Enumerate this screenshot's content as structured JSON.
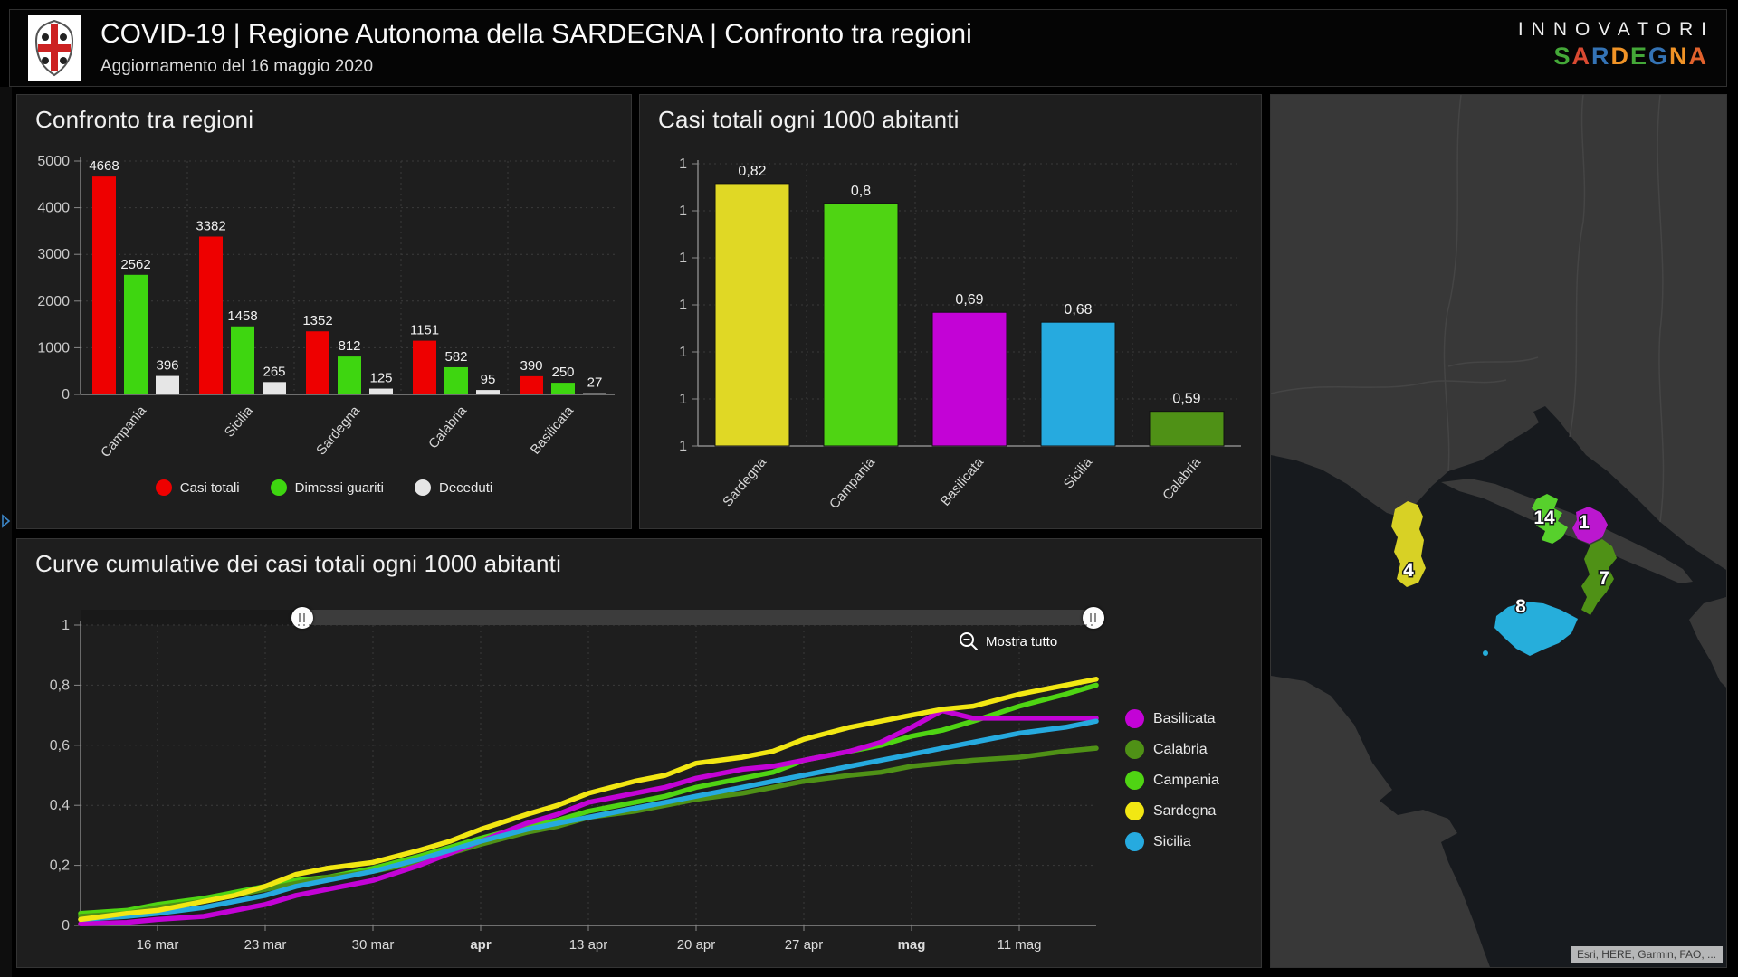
{
  "header": {
    "title": "COVID-19 | Regione Autonoma della SARDEGNA | Confronto tra regioni",
    "subtitle": "Aggiornamento del 16 maggio 2020",
    "logo_name": "stemma-sardegna-quattro-mori",
    "brand": {
      "line1": "INNOVATORI",
      "line2": "SARDEGNA",
      "letter_colors": [
        "#44a838",
        "#d94a32",
        "#3473b5",
        "#f09326",
        "#44a838",
        "#3473b5",
        "#f09326",
        "#e2622d"
      ]
    }
  },
  "left_strip": {
    "expand_icon": "chevron-right-icon",
    "color": "#3c87c9"
  },
  "chart_data": [
    {
      "id": "confronto",
      "type": "bar",
      "title": "Confronto tra regioni",
      "categories": [
        "Campania",
        "Sicilia",
        "Sardegna",
        "Calabria",
        "Basilicata"
      ],
      "series": [
        {
          "name": "Casi totali",
          "color": "#ee0000",
          "values": [
            4668,
            3382,
            1352,
            1151,
            390
          ]
        },
        {
          "name": "Dimessi guariti",
          "color": "#3ed610",
          "values": [
            2562,
            1458,
            812,
            582,
            250
          ]
        },
        {
          "name": "Deceduti",
          "color": "#e6e6e6",
          "values": [
            396,
            265,
            125,
            95,
            27
          ]
        }
      ],
      "ylim": [
        0,
        5000
      ],
      "yticks": [
        0,
        1000,
        2000,
        3000,
        4000,
        5000
      ],
      "grid": "dotted",
      "legend_position": "bottom"
    },
    {
      "id": "per1000",
      "type": "bar",
      "title": "Casi totali ogni 1000 abitanti",
      "categories": [
        "Sardegna",
        "Campania",
        "Basilicata",
        "Sicilia",
        "Calabria"
      ],
      "values": [
        0.82,
        0.8,
        0.69,
        0.68,
        0.59
      ],
      "value_labels": [
        "0,82",
        "0,8",
        "0,69",
        "0,68",
        "0,59"
      ],
      "colors": [
        "#e0d825",
        "#4fd413",
        "#c303d6",
        "#26aadf",
        "#4f9116"
      ],
      "ylim": [
        0.555,
        0.84
      ],
      "ytick_count": 7,
      "ytick_label": "1",
      "grid": "dotted"
    },
    {
      "id": "curve",
      "type": "line",
      "title": "Curve cumulative dei casi totali ogni 1000 abitanti",
      "ylim": [
        0,
        1
      ],
      "y_ticks": [
        {
          "v": 1,
          "label": "1"
        },
        {
          "v": 0.8,
          "label": "0,8"
        },
        {
          "v": 0.6,
          "label": "0,6"
        },
        {
          "v": 0.4,
          "label": "0,4"
        },
        {
          "v": 0.2,
          "label": "0,2"
        },
        {
          "v": 0,
          "label": "0"
        }
      ],
      "x_range_days": [
        0,
        66
      ],
      "x_ticks": [
        {
          "day": 5,
          "label": "16 mar",
          "bold": false
        },
        {
          "day": 12,
          "label": "23 mar",
          "bold": false
        },
        {
          "day": 19,
          "label": "30 mar",
          "bold": false
        },
        {
          "day": 26,
          "label": "apr",
          "bold": true
        },
        {
          "day": 33,
          "label": "13 apr",
          "bold": false
        },
        {
          "day": 40,
          "label": "20 apr",
          "bold": false
        },
        {
          "day": 47,
          "label": "27 apr",
          "bold": false
        },
        {
          "day": 54,
          "label": "mag",
          "bold": true
        },
        {
          "day": 61,
          "label": "11 mag",
          "bold": false
        }
      ],
      "zoom_out_label": "Mostra tutto",
      "slider": {
        "left_frac": 0.218,
        "right_frac": 0.997
      },
      "draw_order": [
        "Campania",
        "Calabria",
        "Basilicata",
        "Sicilia",
        "Sardegna"
      ],
      "series": [
        {
          "name": "Basilicata",
          "color": "#c303d6",
          "x": [
            0,
            3,
            5,
            8,
            10,
            12,
            14,
            16,
            19,
            22,
            24,
            26,
            29,
            31,
            33,
            36,
            38,
            40,
            43,
            45,
            47,
            50,
            52,
            54,
            56,
            58,
            61,
            64,
            66
          ],
          "y": [
            0.005,
            0.01,
            0.02,
            0.03,
            0.05,
            0.07,
            0.1,
            0.12,
            0.15,
            0.2,
            0.24,
            0.28,
            0.34,
            0.37,
            0.41,
            0.44,
            0.46,
            0.49,
            0.52,
            0.53,
            0.55,
            0.58,
            0.61,
            0.66,
            0.715,
            0.69,
            0.69,
            0.69,
            0.69
          ]
        },
        {
          "name": "Calabria",
          "color": "#4f9116",
          "x": [
            0,
            3,
            5,
            8,
            10,
            12,
            14,
            16,
            19,
            22,
            24,
            26,
            29,
            31,
            33,
            36,
            38,
            40,
            43,
            45,
            47,
            50,
            52,
            54,
            56,
            58,
            61,
            64,
            66
          ],
          "y": [
            0.03,
            0.04,
            0.06,
            0.08,
            0.1,
            0.12,
            0.14,
            0.16,
            0.18,
            0.21,
            0.24,
            0.27,
            0.31,
            0.33,
            0.36,
            0.38,
            0.4,
            0.42,
            0.44,
            0.46,
            0.48,
            0.5,
            0.51,
            0.53,
            0.54,
            0.55,
            0.56,
            0.58,
            0.59
          ]
        },
        {
          "name": "Campania",
          "color": "#4fd413",
          "x": [
            0,
            3,
            5,
            8,
            10,
            12,
            14,
            16,
            19,
            22,
            24,
            26,
            29,
            31,
            33,
            36,
            38,
            40,
            43,
            45,
            47,
            50,
            52,
            54,
            56,
            58,
            61,
            64,
            66
          ],
          "y": [
            0.04,
            0.05,
            0.07,
            0.09,
            0.11,
            0.13,
            0.15,
            0.16,
            0.19,
            0.23,
            0.26,
            0.29,
            0.33,
            0.35,
            0.38,
            0.41,
            0.43,
            0.46,
            0.49,
            0.51,
            0.55,
            0.58,
            0.6,
            0.63,
            0.65,
            0.68,
            0.73,
            0.77,
            0.8
          ]
        },
        {
          "name": "Sardegna",
          "color": "#f2e713",
          "x": [
            0,
            3,
            5,
            8,
            10,
            12,
            14,
            16,
            19,
            22,
            24,
            26,
            29,
            31,
            33,
            36,
            38,
            40,
            43,
            45,
            47,
            50,
            52,
            54,
            56,
            58,
            61,
            64,
            66
          ],
          "y": [
            0.02,
            0.04,
            0.05,
            0.08,
            0.1,
            0.13,
            0.17,
            0.19,
            0.21,
            0.25,
            0.28,
            0.32,
            0.37,
            0.4,
            0.44,
            0.48,
            0.5,
            0.54,
            0.56,
            0.58,
            0.62,
            0.66,
            0.68,
            0.7,
            0.72,
            0.73,
            0.77,
            0.8,
            0.82
          ]
        },
        {
          "name": "Sicilia",
          "color": "#26aadf",
          "x": [
            0,
            3,
            5,
            8,
            10,
            12,
            14,
            16,
            19,
            22,
            24,
            26,
            29,
            31,
            33,
            36,
            38,
            40,
            43,
            45,
            47,
            50,
            52,
            54,
            56,
            58,
            61,
            64,
            66
          ],
          "y": [
            0.02,
            0.03,
            0.04,
            0.06,
            0.08,
            0.1,
            0.13,
            0.15,
            0.18,
            0.22,
            0.25,
            0.28,
            0.32,
            0.34,
            0.36,
            0.39,
            0.41,
            0.43,
            0.46,
            0.48,
            0.5,
            0.53,
            0.55,
            0.57,
            0.59,
            0.61,
            0.64,
            0.66,
            0.68
          ]
        }
      ]
    }
  ],
  "map": {
    "regions": [
      {
        "name": "Sardegna",
        "label": "4",
        "color": "#d8d125"
      },
      {
        "name": "Campania",
        "label": "14",
        "color": "#57d02c"
      },
      {
        "name": "Basilicata",
        "label": "1",
        "color": "#bb17cf"
      },
      {
        "name": "Calabria",
        "label": "7",
        "color": "#4f9116"
      },
      {
        "name": "Sicilia",
        "label": "8",
        "color": "#26aedb"
      }
    ],
    "attribution": "Esri, HERE, Garmin, FAO, ..."
  }
}
